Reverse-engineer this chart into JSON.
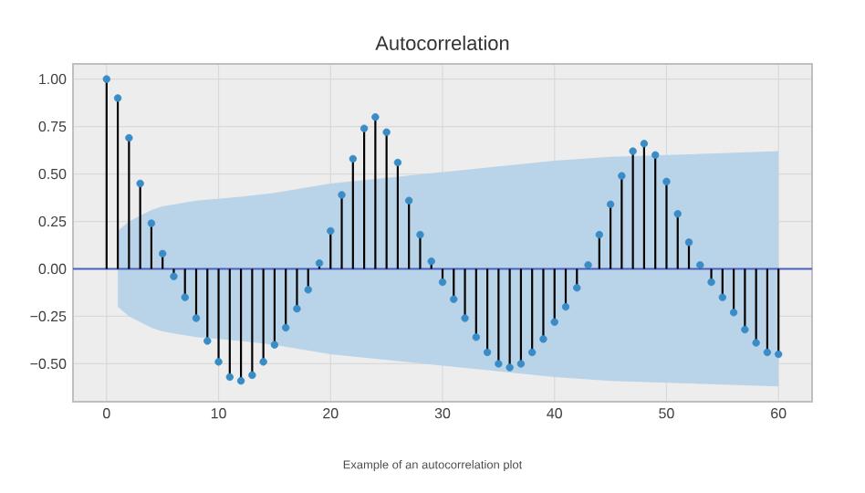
{
  "chart_data": {
    "type": "lollipop",
    "title": "Autocorrelation",
    "annotations": [
      "Example of an autocorrelation plot"
    ],
    "xlim": [
      -3,
      63
    ],
    "ylim": [
      -0.7,
      1.08
    ],
    "xticks": [
      0,
      10,
      20,
      30,
      40,
      50,
      60
    ],
    "yticks": [
      {
        "value": -0.5,
        "label": "−0.50"
      },
      {
        "value": -0.25,
        "label": "−0.25"
      },
      {
        "value": 0,
        "label": "0.00"
      },
      {
        "value": 0.25,
        "label": "0.25"
      },
      {
        "value": 0.5,
        "label": "0.50"
      },
      {
        "value": 0.75,
        "label": "0.75"
      },
      {
        "value": 1,
        "label": "1.00"
      }
    ],
    "grid": true,
    "marker": "circle",
    "ref_lines": [
      {
        "axis": "y",
        "value": 0,
        "color": "#4a5fbf"
      }
    ],
    "series": [
      {
        "type": "line",
        "color": "#7fb0d6",
        "x": [
          1,
          2,
          3,
          4,
          5,
          6,
          8,
          10,
          12,
          15,
          20,
          25,
          30,
          35,
          40,
          45,
          50,
          55,
          60
        ],
        "values": [
          null,
          null,
          null,
          null,
          null,
          null,
          null,
          null,
          null,
          null,
          null,
          null,
          null,
          null,
          null,
          null,
          null,
          null,
          null
        ],
        "upper": [
          0.2,
          0.25,
          0.28,
          0.31,
          0.33,
          0.34,
          0.36,
          0.37,
          0.38,
          0.4,
          0.45,
          0.48,
          0.51,
          0.54,
          0.57,
          0.59,
          0.6,
          0.61,
          0.62
        ],
        "lower": [
          -0.2,
          -0.25,
          -0.28,
          -0.31,
          -0.33,
          -0.34,
          -0.36,
          -0.37,
          -0.38,
          -0.4,
          -0.45,
          -0.48,
          -0.51,
          -0.54,
          -0.57,
          -0.59,
          -0.6,
          -0.61,
          -0.62
        ]
      },
      {
        "color": "#3a8cc6",
        "x": [
          0,
          1,
          2,
          3,
          4,
          5,
          6,
          7,
          8,
          9,
          10,
          11,
          12,
          13,
          14,
          15,
          16,
          17,
          18,
          19,
          20,
          21,
          22,
          23,
          24,
          25,
          26,
          27,
          28,
          29,
          30,
          31,
          32,
          33,
          34,
          35,
          36,
          37,
          38,
          39,
          40,
          41,
          42,
          43,
          44,
          45,
          46,
          47,
          48,
          49,
          50,
          51,
          52,
          53,
          54,
          55,
          56,
          57,
          58,
          59,
          60
        ],
        "values": [
          1.0,
          0.9,
          0.69,
          0.45,
          0.24,
          0.08,
          -0.04,
          -0.15,
          -0.26,
          -0.38,
          -0.49,
          -0.57,
          -0.59,
          -0.56,
          -0.49,
          -0.4,
          -0.31,
          -0.21,
          -0.11,
          0.03,
          0.2,
          0.39,
          0.58,
          0.74,
          0.8,
          0.72,
          0.56,
          0.36,
          0.18,
          0.04,
          -0.07,
          -0.16,
          -0.26,
          -0.36,
          -0.44,
          -0.5,
          -0.52,
          -0.5,
          -0.44,
          -0.37,
          -0.28,
          -0.2,
          -0.1,
          0.02,
          0.18,
          0.34,
          0.49,
          0.62,
          0.66,
          0.6,
          0.46,
          0.29,
          0.14,
          0.02,
          -0.07,
          -0.15,
          -0.23,
          -0.32,
          -0.39,
          -0.44,
          -0.45
        ]
      }
    ]
  }
}
